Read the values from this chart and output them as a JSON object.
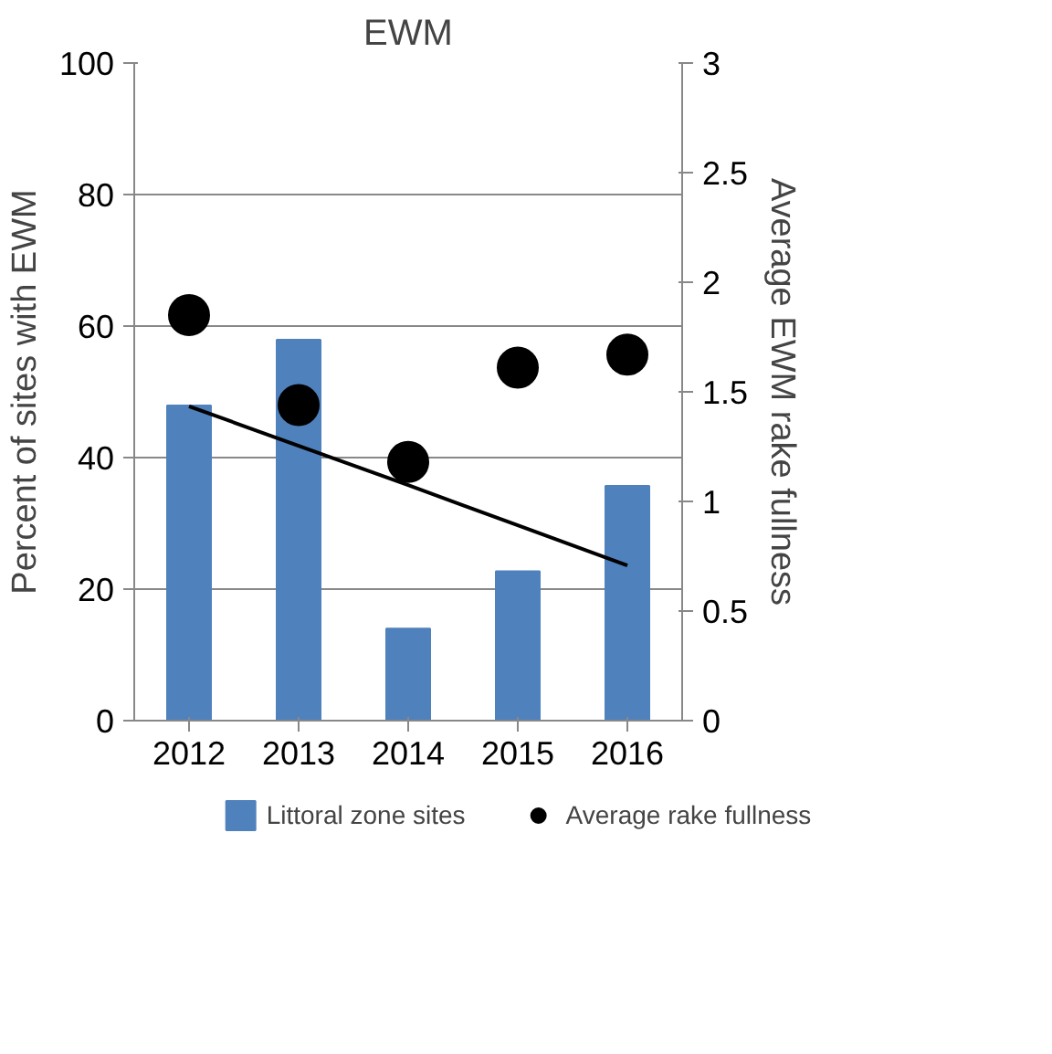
{
  "chart_data": {
    "type": "bar",
    "title": "EWM",
    "ylabel": "Percent of sites with EWM",
    "y2label": "Average EWM rake fullness",
    "categories": [
      "2012",
      "2013",
      "2014",
      "2015",
      "2016"
    ],
    "series": [
      {
        "name": "Littoral zone sites",
        "color": "#4f81bd",
        "values": [
          47.9,
          57.9,
          14.0,
          22.7,
          35.7
        ]
      },
      {
        "name": "Average rake fullness",
        "type": "scatter",
        "axis": "y2",
        "color": "#000000",
        "marker": "circle",
        "values": [
          1.85,
          1.44,
          1.18,
          1.61,
          1.67
        ]
      },
      {
        "type": "line",
        "color": "#000000",
        "values": [
          47.8,
          41.8,
          35.8,
          29.7,
          23.6
        ]
      }
    ],
    "ylim": [
      0,
      100
    ],
    "yticks": [
      0,
      20,
      40,
      60,
      80,
      100
    ],
    "y2lim": [
      0,
      3
    ],
    "y2ticks": [
      0,
      0.5,
      1,
      1.5,
      2,
      2.5,
      3
    ],
    "grid": "y",
    "legend": "bottom"
  }
}
